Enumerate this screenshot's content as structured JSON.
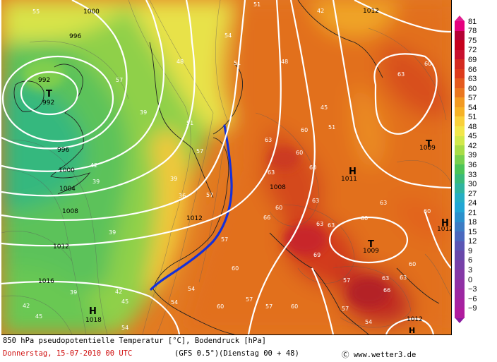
{
  "caption": {
    "title": "850 hPa pseudopotentielle Temperatur [°C], Bodendruck [hPa]",
    "date_line": "Donnerstag, 15-07-2010   00 UTC",
    "model": "(GFS 0.5°)",
    "run": "(Dienstag 00 + 48)",
    "copyright": "Ⓒ www.wetter3.de"
  },
  "legend": {
    "values": [
      "81",
      "78",
      "75",
      "72",
      "69",
      "66",
      "63",
      "60",
      "57",
      "54",
      "51",
      "48",
      "45",
      "42",
      "39",
      "36",
      "33",
      "30",
      "27",
      "24",
      "21",
      "18",
      "15",
      "12",
      "9",
      "6",
      "3",
      "0",
      "−3",
      "−6",
      "−9"
    ],
    "colors": [
      "#e6007e",
      "#b40035",
      "#c5001c",
      "#c8102e",
      "#d42a20",
      "#dd3b1c",
      "#e45a1e",
      "#ea7720",
      "#f29a22",
      "#f6b226",
      "#f9d03a",
      "#f2e64a",
      "#d2e84a",
      "#a8dc46",
      "#78d04e",
      "#4cc458",
      "#3aba7a",
      "#30b4a0",
      "#26aec4",
      "#22a6d4",
      "#2b90cc",
      "#3d7cc4",
      "#4a68be",
      "#5a56b4",
      "#6848aa",
      "#7640a8",
      "#8438a6",
      "#9030a4",
      "#9c28a2",
      "#a622a0",
      "#b01c9e"
    ]
  },
  "pressure_labels": [
    {
      "v": "1000"
    },
    {
      "v": "996"
    },
    {
      "v": "992"
    },
    {
      "v": "996"
    },
    {
      "v": "1000"
    },
    {
      "v": "1004"
    },
    {
      "v": "1008"
    },
    {
      "v": "1012"
    },
    {
      "v": "1016"
    },
    {
      "v": "1012"
    },
    {
      "v": "1008"
    },
    {
      "v": "1012"
    },
    {
      "v": "1009"
    },
    {
      "v": "1011"
    },
    {
      "v": "1012"
    }
  ],
  "theta_labels": [
    "55",
    "51",
    "42",
    "48",
    "54",
    "51",
    "60",
    "51",
    "48",
    "57",
    "51",
    "45",
    "39",
    "42",
    "39",
    "60",
    "63",
    "57",
    "39",
    "36",
    "57",
    "60",
    "63",
    "63",
    "60",
    "60",
    "63",
    "39",
    "66",
    "63",
    "57",
    "60",
    "69",
    "66",
    "63",
    "60",
    "39",
    "54",
    "57",
    "60",
    "60",
    "57",
    "54",
    "57",
    "42",
    "45",
    "42",
    "45",
    "63",
    "60",
    "63",
    "54",
    "60",
    "54",
    "57",
    "63"
  ],
  "pressure_centers": [
    {
      "type": "T",
      "value": "992"
    },
    {
      "type": "H",
      "value": "1018"
    },
    {
      "type": "H",
      "value": "1011"
    },
    {
      "type": "T",
      "value": "1009"
    },
    {
      "type": "T",
      "value": "1009"
    },
    {
      "type": "H",
      "value": "1012"
    },
    {
      "type": "H",
      "value": ""
    }
  ]
}
